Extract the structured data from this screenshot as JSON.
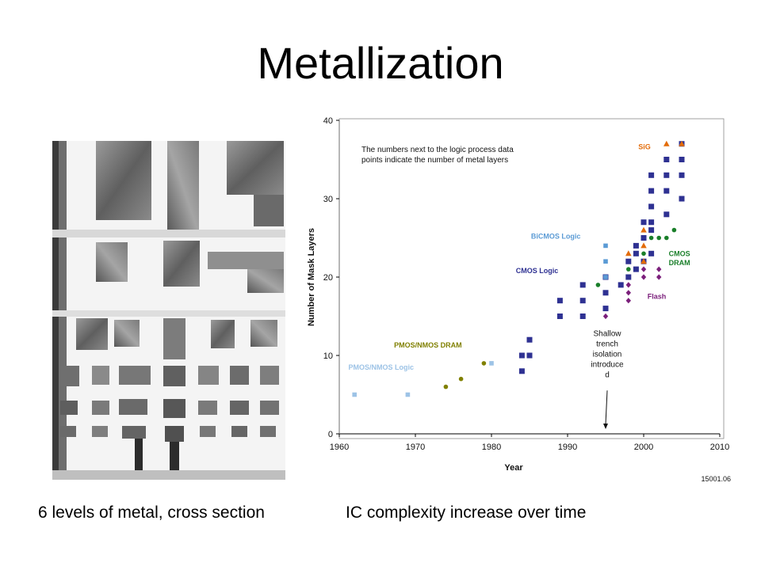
{
  "slide": {
    "title": "Metallization",
    "caption_left": "6 levels of metal, cross section",
    "caption_right": "IC complexity increase over time"
  },
  "colors": {
    "cmos_logic": "#2e3192",
    "bicmos_logic": "#5b9bd5",
    "pmos_nmos_logic": "#9dc3e6",
    "pmos_nmos_dram": "#808000",
    "cmos_dram": "#1a7f2a",
    "flash": "#7b1f7b",
    "sig": "#e36c09"
  },
  "chart_data": {
    "type": "scatter",
    "xlabel": "Year",
    "ylabel": "Number of Mask Layers",
    "xlim": [
      1960,
      2010
    ],
    "ylim": [
      0,
      40
    ],
    "xticks": [
      "1960",
      "1970",
      "1980",
      "1990",
      "2000",
      "2010"
    ],
    "yticks": [
      "0",
      "10",
      "20",
      "30",
      "40"
    ],
    "note": "The numbers next to the logic process data points indicate the number of metal layers",
    "figure_id": "15001.06",
    "annotation": {
      "text_lines": [
        "Shallow",
        "trench",
        "isolation",
        "introduce",
        "d"
      ],
      "year": 1995
    },
    "series": [
      {
        "name": "PMOS/NMOS Logic",
        "color": "#9dc3e6",
        "marker": "square-small",
        "points": [
          [
            1962,
            5
          ],
          [
            1969,
            5
          ],
          [
            1980,
            9
          ]
        ]
      },
      {
        "name": "PMOS/NMOS DRAM",
        "color": "#808000",
        "marker": "circle",
        "points": [
          [
            1974,
            6
          ],
          [
            1976,
            7
          ],
          [
            1979,
            9
          ]
        ]
      },
      {
        "name": "CMOS Logic",
        "color": "#2e3192",
        "marker": "square",
        "points": [
          [
            1984,
            8
          ],
          [
            1984,
            10
          ],
          [
            1985,
            10
          ],
          [
            1985,
            12
          ],
          [
            1989,
            15
          ],
          [
            1989,
            17
          ],
          [
            1992,
            15
          ],
          [
            1992,
            17
          ],
          [
            1992,
            19
          ],
          [
            1995,
            16
          ],
          [
            1995,
            18
          ],
          [
            1995,
            20
          ],
          [
            1997,
            19
          ],
          [
            1998,
            20
          ],
          [
            1998,
            22
          ],
          [
            1999,
            21
          ],
          [
            1999,
            23
          ],
          [
            1999,
            24
          ],
          [
            2000,
            22
          ],
          [
            2000,
            25
          ],
          [
            2000,
            27
          ],
          [
            2001,
            23
          ],
          [
            2001,
            26
          ],
          [
            2001,
            27
          ],
          [
            2001,
            29
          ],
          [
            2001,
            31
          ],
          [
            2001,
            33
          ],
          [
            2003,
            28
          ],
          [
            2003,
            31
          ],
          [
            2003,
            33
          ],
          [
            2003,
            35
          ],
          [
            2005,
            30
          ],
          [
            2005,
            33
          ],
          [
            2005,
            35
          ],
          [
            2005,
            37
          ]
        ]
      },
      {
        "name": "BiCMOS Logic",
        "color": "#5b9bd5",
        "marker": "square-small",
        "points": [
          [
            1995,
            20
          ],
          [
            1995,
            22
          ],
          [
            1995,
            24
          ]
        ]
      },
      {
        "name": "CMOS DRAM",
        "color": "#1a7f2a",
        "marker": "circle",
        "points": [
          [
            1994,
            19
          ],
          [
            1998,
            21
          ],
          [
            2000,
            23
          ],
          [
            2001,
            25
          ],
          [
            2002,
            25
          ],
          [
            2003,
            25
          ],
          [
            2004,
            26
          ]
        ]
      },
      {
        "name": "Flash",
        "color": "#7b1f7b",
        "marker": "diamond",
        "points": [
          [
            1995,
            15
          ],
          [
            1998,
            17
          ],
          [
            1998,
            18
          ],
          [
            1998,
            19
          ],
          [
            2000,
            20
          ],
          [
            2000,
            21
          ],
          [
            2002,
            20
          ],
          [
            2002,
            21
          ]
        ]
      },
      {
        "name": "SiG",
        "color": "#e36c09",
        "marker": "triangle",
        "points": [
          [
            1998,
            23
          ],
          [
            2000,
            22
          ],
          [
            2000,
            24
          ],
          [
            2000,
            26
          ],
          [
            2003,
            37
          ],
          [
            2005,
            37
          ]
        ]
      }
    ],
    "series_labels": [
      {
        "text": "SiG",
        "color": "#e36c09",
        "year": 1999.3,
        "value": 36.3
      },
      {
        "text": "BiCMOS Logic",
        "color": "#5b9bd5",
        "year": 1985.2,
        "value": 24.9
      },
      {
        "text": "CMOS Logic",
        "color": "#2e3192",
        "year": 1983.2,
        "value": 20.5
      },
      {
        "text": "CMOS",
        "color": "#1a7f2a",
        "year": 2003.3,
        "value": 22.7
      },
      {
        "text": "DRAM",
        "color": "#1a7f2a",
        "year": 2003.3,
        "value": 21.5
      },
      {
        "text": "Flash",
        "color": "#7b1f7b",
        "year": 2000.5,
        "value": 17.2
      },
      {
        "text": "PMOS/NMOS DRAM",
        "color": "#808000",
        "year": 1967.2,
        "value": 11.0
      },
      {
        "text": "PMOS/NMOS Logic",
        "color": "#9dc3e6",
        "year": 1961.2,
        "value": 8.2
      }
    ]
  }
}
